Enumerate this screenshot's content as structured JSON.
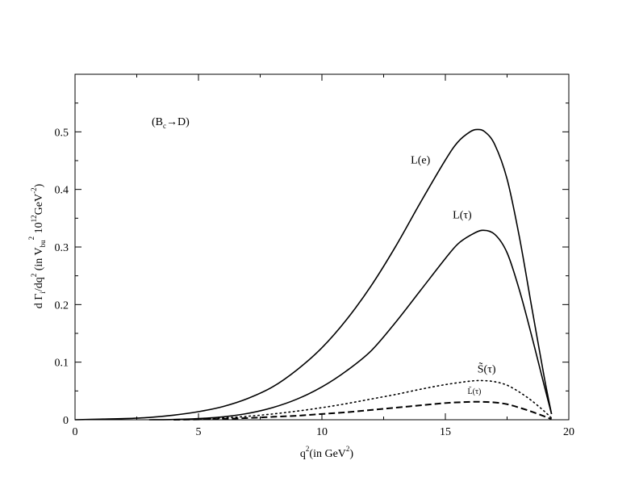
{
  "chart_data": {
    "type": "line",
    "xlim": [
      0,
      20
    ],
    "ylim": [
      0,
      0.6
    ],
    "x_ticks": [
      "0",
      "5",
      "10",
      "15",
      "20"
    ],
    "y_ticks": [
      "0",
      "0.1",
      "0.2",
      "0.3",
      "0.4",
      "0.5"
    ],
    "xlabel": {
      "base": "q",
      "sup1": "2",
      "mid": "(in GeV",
      "sup2": "2",
      "end": ")"
    },
    "ylabel": {
      "p1": "d Γ",
      "sub1": "i",
      "p2": "/dq",
      "sup1": "2",
      "p3": " (in V",
      "sub2": "bu",
      "sup2": "2",
      "p4": " 10",
      "sup3": "12",
      "p5": "GeV",
      "sup4": "-2",
      "p6": ")"
    },
    "process_label": {
      "open": "(B",
      "sub": "c",
      "arrow": "→",
      "close": "D)"
    },
    "series": [
      {
        "name": "L(e)",
        "style": "solid",
        "x": [
          0,
          1,
          2,
          3,
          4,
          5,
          6,
          7,
          8,
          9,
          10,
          11,
          12,
          13,
          14,
          15,
          15.5,
          16,
          16.3,
          16.6,
          17,
          17.5,
          18,
          18.5,
          19,
          19.3
        ],
        "y": [
          0.0,
          0.001,
          0.002,
          0.004,
          0.008,
          0.014,
          0.023,
          0.037,
          0.057,
          0.087,
          0.125,
          0.174,
          0.233,
          0.302,
          0.378,
          0.451,
          0.482,
          0.5,
          0.504,
          0.5,
          0.478,
          0.418,
          0.317,
          0.195,
          0.075,
          0.01
        ]
      },
      {
        "name": "L(τ)",
        "style": "solid",
        "x": [
          3,
          4,
          5,
          6,
          7,
          8,
          9,
          10,
          11,
          12,
          13,
          14,
          15,
          15.5,
          16,
          16.5,
          17,
          17.5,
          18,
          18.5,
          19,
          19.3
        ],
        "y": [
          0.0,
          0.0005,
          0.002,
          0.005,
          0.011,
          0.021,
          0.036,
          0.057,
          0.085,
          0.12,
          0.17,
          0.225,
          0.28,
          0.305,
          0.32,
          0.329,
          0.322,
          0.29,
          0.225,
          0.145,
          0.06,
          0.01
        ]
      },
      {
        "name": "S̃(τ)",
        "style": "dotted",
        "x": [
          4,
          5,
          6,
          7,
          8,
          9,
          10,
          11,
          12,
          13,
          14,
          15,
          16,
          16.5,
          17,
          17.5,
          18,
          18.5,
          19,
          19.3
        ],
        "y": [
          0.0,
          0.001,
          0.003,
          0.006,
          0.01,
          0.015,
          0.021,
          0.028,
          0.036,
          0.044,
          0.053,
          0.061,
          0.067,
          0.068,
          0.066,
          0.06,
          0.048,
          0.033,
          0.015,
          0.003
        ]
      },
      {
        "name": "L̃(τ)",
        "style": "dashed",
        "x": [
          4,
          5,
          6,
          7,
          8,
          9,
          10,
          11,
          12,
          13,
          14,
          15,
          16,
          16.5,
          17,
          17.5,
          18,
          18.5,
          19,
          19.3
        ],
        "y": [
          0.0,
          0.0005,
          0.0015,
          0.003,
          0.005,
          0.007,
          0.01,
          0.013,
          0.017,
          0.021,
          0.025,
          0.029,
          0.031,
          0.031,
          0.03,
          0.027,
          0.021,
          0.014,
          0.006,
          0.001
        ]
      }
    ],
    "annotations": [
      {
        "text": "L(e)",
        "x": 13.6,
        "y": 0.445,
        "size": "normal"
      },
      {
        "text": "L(τ)",
        "x": 15.3,
        "y": 0.35,
        "size": "normal"
      },
      {
        "text": "S̃(τ)",
        "x": 16.3,
        "y": 0.082,
        "size": "normal"
      },
      {
        "text": "L̃(τ)",
        "x": 15.9,
        "y": 0.045,
        "size": "small"
      }
    ]
  }
}
